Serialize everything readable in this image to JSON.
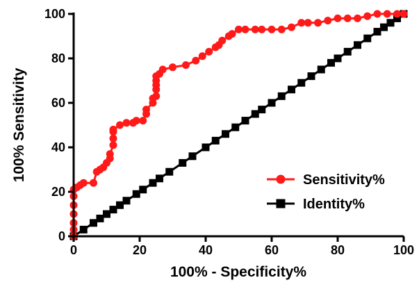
{
  "chart_data": {
    "type": "line",
    "xlabel": "100% - Specificity%",
    "ylabel": "100% Sensitivity",
    "xlim": [
      0,
      100
    ],
    "ylim": [
      0,
      100
    ],
    "xticks": [
      0,
      20,
      40,
      60,
      80,
      100
    ],
    "yticks": [
      0,
      20,
      40,
      60,
      80,
      100
    ],
    "grid": false,
    "legend_position": "bottom-right",
    "series": [
      {
        "name": "Sensitivity%",
        "color": "#ff1a1a",
        "marker": "circle",
        "points": [
          [
            0,
            0
          ],
          [
            0,
            3
          ],
          [
            0,
            6
          ],
          [
            0,
            10
          ],
          [
            0,
            14
          ],
          [
            0,
            18
          ],
          [
            0,
            21
          ],
          [
            1,
            22
          ],
          [
            2,
            23
          ],
          [
            3,
            24
          ],
          [
            6,
            24
          ],
          [
            7,
            29
          ],
          [
            8,
            30
          ],
          [
            9,
            31
          ],
          [
            10,
            33
          ],
          [
            11,
            35
          ],
          [
            11,
            37
          ],
          [
            12,
            41
          ],
          [
            12,
            44
          ],
          [
            12,
            47
          ],
          [
            12,
            48
          ],
          [
            14,
            50
          ],
          [
            16,
            51
          ],
          [
            18,
            51
          ],
          [
            19,
            52
          ],
          [
            21,
            52
          ],
          [
            22,
            55
          ],
          [
            22,
            57
          ],
          [
            24,
            60
          ],
          [
            24,
            62
          ],
          [
            25,
            63
          ],
          [
            25,
            66
          ],
          [
            25,
            68
          ],
          [
            25,
            70
          ],
          [
            25,
            72
          ],
          [
            26,
            73
          ],
          [
            27,
            75
          ],
          [
            30,
            76
          ],
          [
            34,
            77
          ],
          [
            37,
            79
          ],
          [
            39,
            81
          ],
          [
            41,
            83
          ],
          [
            43,
            85
          ],
          [
            44,
            86
          ],
          [
            45,
            88
          ],
          [
            47,
            90
          ],
          [
            48,
            91
          ],
          [
            50,
            93
          ],
          [
            52,
            93
          ],
          [
            55,
            93
          ],
          [
            57,
            93
          ],
          [
            60,
            93
          ],
          [
            63,
            93
          ],
          [
            66,
            94
          ],
          [
            69,
            96
          ],
          [
            71,
            96
          ],
          [
            74,
            96
          ],
          [
            77,
            97
          ],
          [
            80,
            98
          ],
          [
            83,
            98
          ],
          [
            86,
            98
          ],
          [
            89,
            99
          ],
          [
            92,
            100
          ],
          [
            95,
            100
          ],
          [
            98,
            100
          ],
          [
            100,
            100
          ]
        ]
      },
      {
        "name": "Identity%",
        "color": "#000000",
        "marker": "square",
        "points": [
          [
            0,
            0
          ],
          [
            3,
            3
          ],
          [
            6,
            6
          ],
          [
            8,
            8
          ],
          [
            10,
            10
          ],
          [
            12,
            12
          ],
          [
            14,
            14
          ],
          [
            16,
            16
          ],
          [
            19,
            19
          ],
          [
            21,
            21
          ],
          [
            24,
            24
          ],
          [
            26,
            26
          ],
          [
            29,
            29
          ],
          [
            33,
            33
          ],
          [
            36,
            36
          ],
          [
            40,
            40
          ],
          [
            43,
            43
          ],
          [
            46,
            46
          ],
          [
            49,
            49
          ],
          [
            52,
            52
          ],
          [
            55,
            55
          ],
          [
            57,
            57
          ],
          [
            60,
            60
          ],
          [
            63,
            63
          ],
          [
            66,
            66
          ],
          [
            69,
            69
          ],
          [
            72,
            72
          ],
          [
            75,
            75
          ],
          [
            78,
            78
          ],
          [
            80,
            80
          ],
          [
            83,
            83
          ],
          [
            86,
            86
          ],
          [
            89,
            89
          ],
          [
            92,
            92
          ],
          [
            94,
            94
          ],
          [
            96,
            96
          ],
          [
            98,
            98
          ],
          [
            100,
            100
          ]
        ]
      }
    ]
  }
}
